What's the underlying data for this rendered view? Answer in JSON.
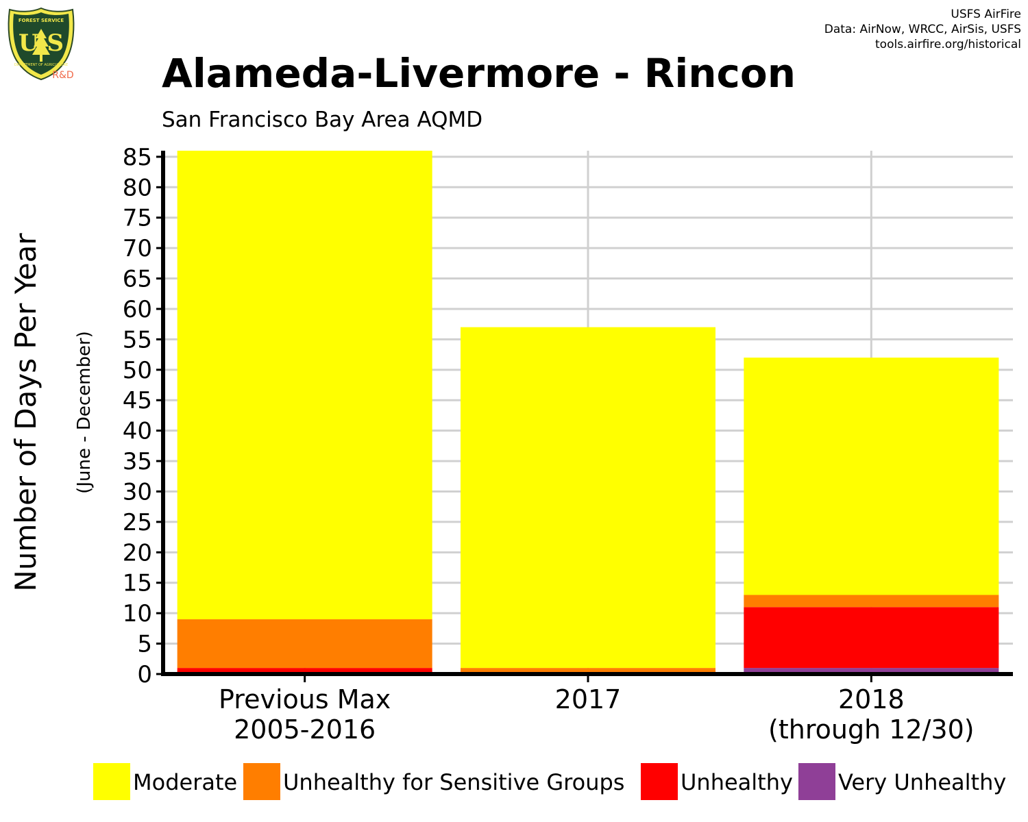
{
  "header": {
    "title": "Alameda-Livermore - Rincon",
    "subtitle": "San Francisco Bay Area AQMD",
    "credits": [
      "USFS AirFire",
      "Data: AirNow, WRCC, AirSis, USFS",
      "tools.airfire.org/historical"
    ]
  },
  "logo": {
    "top_text": "FOREST SERVICE",
    "letters": "U S",
    "bottom_text": "DEPARTMENT OF AGRICULTURE",
    "tag": "R&D",
    "icon": "forest-service-shield-icon"
  },
  "chart_data": {
    "type": "bar",
    "stacked": true,
    "categories": [
      [
        "Previous Max",
        "2005-2016"
      ],
      [
        "2017"
      ],
      [
        "2018",
        "(through 12/30)"
      ]
    ],
    "series": [
      {
        "name": "Very Unhealthy",
        "color": "#8f3f97",
        "values": [
          0,
          0,
          1
        ]
      },
      {
        "name": "Unhealthy",
        "color": "#ff0000",
        "values": [
          1,
          0,
          10
        ]
      },
      {
        "name": "Unhealthy for Sensitive Groups",
        "color": "#ff7e00",
        "values": [
          8,
          1,
          2
        ]
      },
      {
        "name": "Moderate",
        "color": "#ffff00",
        "values": [
          77,
          56,
          39
        ]
      }
    ],
    "legend_order": [
      "Moderate",
      "Unhealthy for Sensitive Groups",
      "Unhealthy",
      "Very Unhealthy"
    ],
    "ylabel": "Number of Days Per Year",
    "ylabel_sub": "(June - December)",
    "ylim": [
      0,
      86
    ],
    "yticks": [
      0,
      5,
      10,
      15,
      20,
      25,
      30,
      35,
      40,
      45,
      50,
      55,
      60,
      65,
      70,
      75,
      80,
      85
    ],
    "grid": true,
    "legend_position": "bottom"
  }
}
